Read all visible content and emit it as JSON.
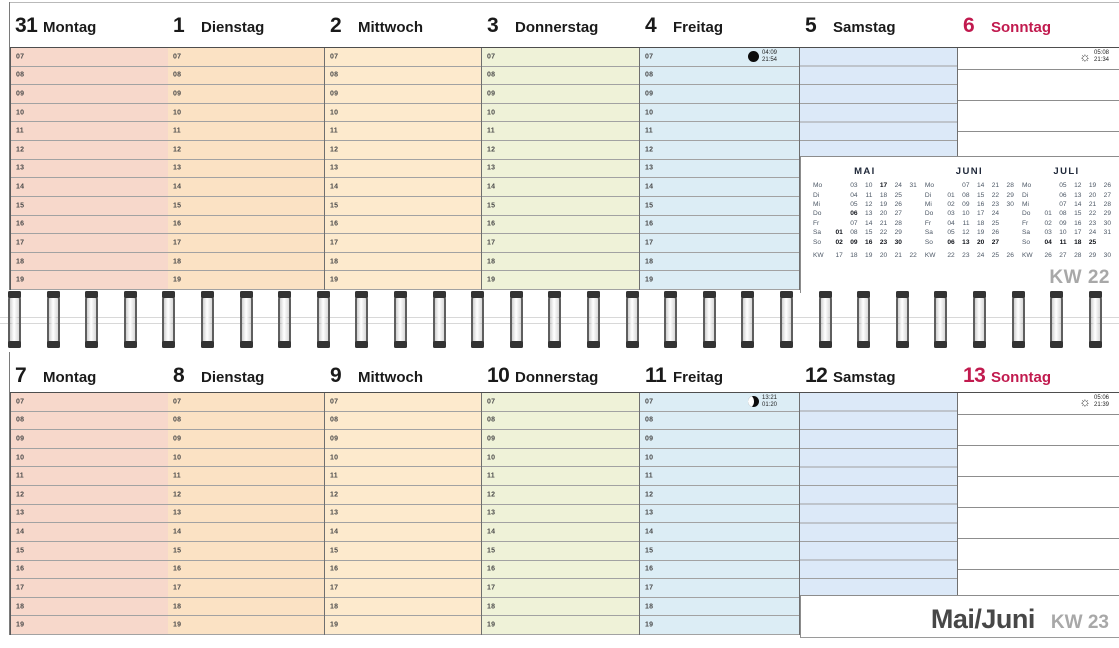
{
  "weeks": [
    {
      "kw": "KW 22",
      "days": [
        {
          "num": "31",
          "name": "Montag"
        },
        {
          "num": "1",
          "name": "Dienstag"
        },
        {
          "num": "2",
          "name": "Mittwoch"
        },
        {
          "num": "3",
          "name": "Donnerstag"
        },
        {
          "num": "4",
          "name": "Freitag",
          "moon": {
            "phase": "new-moon",
            "rise": "04:09",
            "set": "21:54"
          }
        },
        {
          "num": "5",
          "name": "Samstag"
        },
        {
          "num": "6",
          "name": "Sonntag",
          "sun": {
            "rise": "05:08",
            "set": "21:34"
          }
        }
      ]
    },
    {
      "kw": "KW 23",
      "month_label": "Mai/Juni",
      "days": [
        {
          "num": "7",
          "name": "Montag"
        },
        {
          "num": "8",
          "name": "Dienstag"
        },
        {
          "num": "9",
          "name": "Mittwoch"
        },
        {
          "num": "10",
          "name": "Donnerstag"
        },
        {
          "num": "11",
          "name": "Freitag",
          "moon": {
            "phase": "waxing-crescent",
            "rise": "13:21",
            "set": "01:20"
          }
        },
        {
          "num": "12",
          "name": "Samstag"
        },
        {
          "num": "13",
          "name": "Sonntag",
          "sun": {
            "rise": "05:06",
            "set": "21:39"
          }
        }
      ]
    }
  ],
  "hours": [
    "07",
    "08",
    "09",
    "10",
    "11",
    "12",
    "13",
    "14",
    "15",
    "16",
    "17",
    "18",
    "19"
  ],
  "mini_calendar": {
    "day_labels": [
      "Mo",
      "Di",
      "Mi",
      "Do",
      "Fr",
      "Sa",
      "So"
    ],
    "kw_row_label": "KW",
    "months": [
      {
        "title": "MAI",
        "rows": [
          [
            "",
            "03",
            "10",
            "*17",
            "24",
            "31"
          ],
          [
            "",
            "04",
            "11",
            "18",
            "25",
            ""
          ],
          [
            "",
            "05",
            "12",
            "19",
            "26",
            ""
          ],
          [
            "",
            "*06",
            "13",
            "20",
            "27",
            ""
          ],
          [
            "",
            "07",
            "14",
            "21",
            "28",
            ""
          ],
          [
            "*01",
            "08",
            "15",
            "22",
            "29",
            ""
          ],
          [
            "*02",
            "*09",
            "*16",
            "*23",
            "*30",
            ""
          ]
        ],
        "kw_row": [
          "17",
          "18",
          "19",
          "20",
          "21",
          "22"
        ]
      },
      {
        "title": "JUNI",
        "rows": [
          [
            "",
            "07",
            "14",
            "21",
            "28"
          ],
          [
            "01",
            "08",
            "15",
            "22",
            "29"
          ],
          [
            "02",
            "09",
            "16",
            "23",
            "30"
          ],
          [
            "03",
            "10",
            "17",
            "24",
            ""
          ],
          [
            "04",
            "11",
            "18",
            "25",
            ""
          ],
          [
            "05",
            "12",
            "19",
            "26",
            ""
          ],
          [
            "*06",
            "*13",
            "*20",
            "*27",
            ""
          ]
        ],
        "kw_row": [
          "22",
          "23",
          "24",
          "25",
          "26"
        ]
      },
      {
        "title": "JULI",
        "rows": [
          [
            "",
            "05",
            "12",
            "19",
            "26"
          ],
          [
            "",
            "06",
            "13",
            "20",
            "27"
          ],
          [
            "",
            "07",
            "14",
            "21",
            "28"
          ],
          [
            "01",
            "08",
            "15",
            "22",
            "29"
          ],
          [
            "02",
            "09",
            "16",
            "23",
            "30"
          ],
          [
            "03",
            "10",
            "17",
            "24",
            "31"
          ],
          [
            "*04",
            "*11",
            "*18",
            "*25",
            ""
          ]
        ],
        "kw_row": [
          "26",
          "27",
          "28",
          "29",
          "30"
        ]
      }
    ]
  },
  "colors": {
    "monday_fill": "#f7d8cb",
    "tuesday_fill": "#fbe2c4",
    "wednesday_fill": "#fdeacd",
    "thursday_fill": "#eff2d8",
    "friday_fill": "#dcedf5",
    "saturday_fill": "#dce9f8",
    "sunday_fill": "#ffffff",
    "sunday_text": "#c11a4e",
    "kw_text": "#a8a8a8",
    "row_line": "#a2a2a2",
    "column_line": "#6f6f6f"
  }
}
